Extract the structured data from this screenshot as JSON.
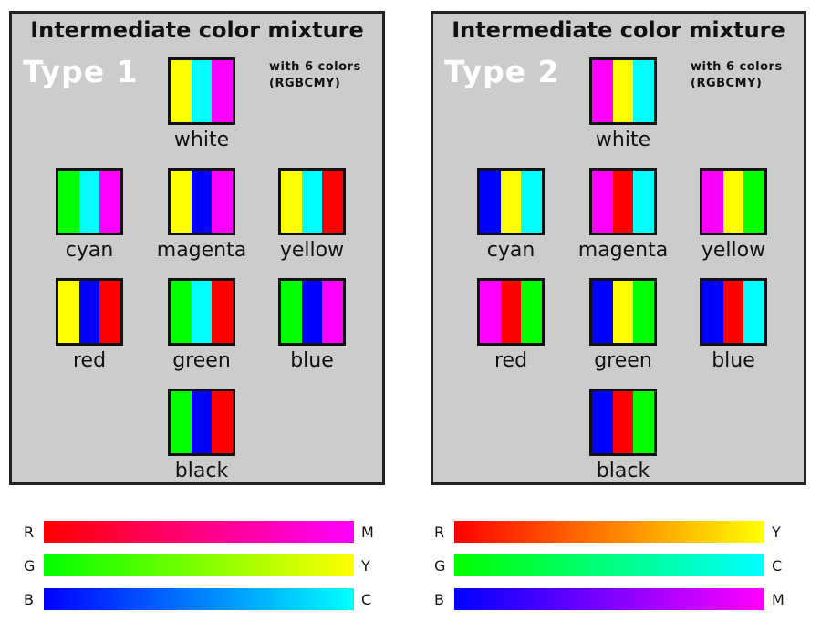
{
  "panels": [
    {
      "title": "Intermediate color mixture",
      "type_label": "Type 1",
      "note_line1": "with 6 colors",
      "note_line2": "(RGBCMY)",
      "swatches": [
        {
          "name": "white",
          "stripes": [
            "#ffff00",
            "#00ffff",
            "#ff00ff"
          ]
        },
        {
          "name": "cyan",
          "stripes": [
            "#00ff00",
            "#00ffff",
            "#ff00ff"
          ]
        },
        {
          "name": "magenta",
          "stripes": [
            "#ffff00",
            "#0000ff",
            "#ff00ff"
          ]
        },
        {
          "name": "yellow",
          "stripes": [
            "#ffff00",
            "#00ffff",
            "#ff0000"
          ]
        },
        {
          "name": "red",
          "stripes": [
            "#ffff00",
            "#0000ff",
            "#ff0000"
          ]
        },
        {
          "name": "green",
          "stripes": [
            "#00ff00",
            "#00ffff",
            "#ff0000"
          ]
        },
        {
          "name": "blue",
          "stripes": [
            "#00ff00",
            "#0000ff",
            "#ff00ff"
          ]
        },
        {
          "name": "black",
          "stripes": [
            "#00ff00",
            "#0000ff",
            "#ff0000"
          ]
        }
      ],
      "gradients": [
        {
          "start": "R",
          "end": "M",
          "from": "#ff0000",
          "to": "#ff00ff"
        },
        {
          "start": "G",
          "end": "Y",
          "from": "#00ff00",
          "to": "#ffff00"
        },
        {
          "start": "B",
          "end": "C",
          "from": "#0000ff",
          "to": "#00ffff"
        }
      ]
    },
    {
      "title": "Intermediate color mixture",
      "type_label": "Type 2",
      "note_line1": "with 6 colors",
      "note_line2": "(RGBCMY)",
      "swatches": [
        {
          "name": "white",
          "stripes": [
            "#ff00ff",
            "#ffff00",
            "#00ffff"
          ]
        },
        {
          "name": "cyan",
          "stripes": [
            "#0000ff",
            "#ffff00",
            "#00ffff"
          ]
        },
        {
          "name": "magenta",
          "stripes": [
            "#ff00ff",
            "#ff0000",
            "#00ffff"
          ]
        },
        {
          "name": "yellow",
          "stripes": [
            "#ff00ff",
            "#ffff00",
            "#00ff00"
          ]
        },
        {
          "name": "red",
          "stripes": [
            "#ff00ff",
            "#ff0000",
            "#00ff00"
          ]
        },
        {
          "name": "green",
          "stripes": [
            "#0000ff",
            "#ffff00",
            "#00ff00"
          ]
        },
        {
          "name": "blue",
          "stripes": [
            "#0000ff",
            "#ff0000",
            "#00ffff"
          ]
        },
        {
          "name": "black",
          "stripes": [
            "#0000ff",
            "#ff0000",
            "#00ff00"
          ]
        }
      ],
      "gradients": [
        {
          "start": "R",
          "end": "Y",
          "from": "#ff0000",
          "to": "#ffff00"
        },
        {
          "start": "G",
          "end": "C",
          "from": "#00ff00",
          "to": "#00ffff"
        },
        {
          "start": "B",
          "end": "M",
          "from": "#0000ff",
          "to": "#ff00ff"
        }
      ]
    }
  ]
}
